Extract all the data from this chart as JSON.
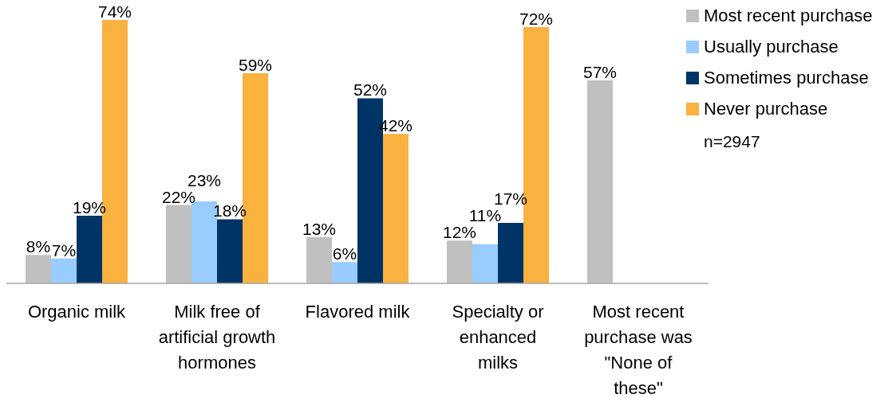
{
  "chart_data": {
    "type": "bar",
    "categories": [
      "Organic milk",
      "Milk free of artificial growth hormones",
      "Flavored milk",
      "Specialty or enhanced milks",
      "Most recent purchase was \"None of these\""
    ],
    "series": [
      {
        "name": "Most recent purchase",
        "color": "#c0c0c0",
        "values": [
          8,
          22,
          13,
          12,
          57
        ],
        "value_labels": [
          "8%",
          "22%",
          "13%",
          "12%",
          "57%"
        ]
      },
      {
        "name": "Usually purchase",
        "color": "#99ccff",
        "values": [
          7,
          23,
          6,
          11,
          null
        ],
        "value_labels": [
          "7%",
          "23%",
          "6%",
          "11%",
          null
        ]
      },
      {
        "name": "Sometimes purchase",
        "color": "#003366",
        "values": [
          19,
          18,
          52,
          17,
          null
        ],
        "value_labels": [
          "19%",
          "18%",
          "52%",
          "17%",
          null
        ]
      },
      {
        "name": "Never purchase",
        "color": "#f9b13f",
        "values": [
          74,
          59,
          42,
          72,
          null
        ],
        "value_labels": [
          "74%",
          "59%",
          "42%",
          "72%",
          null
        ]
      }
    ],
    "legend": "top right",
    "annotations": [
      "n=2947"
    ]
  }
}
